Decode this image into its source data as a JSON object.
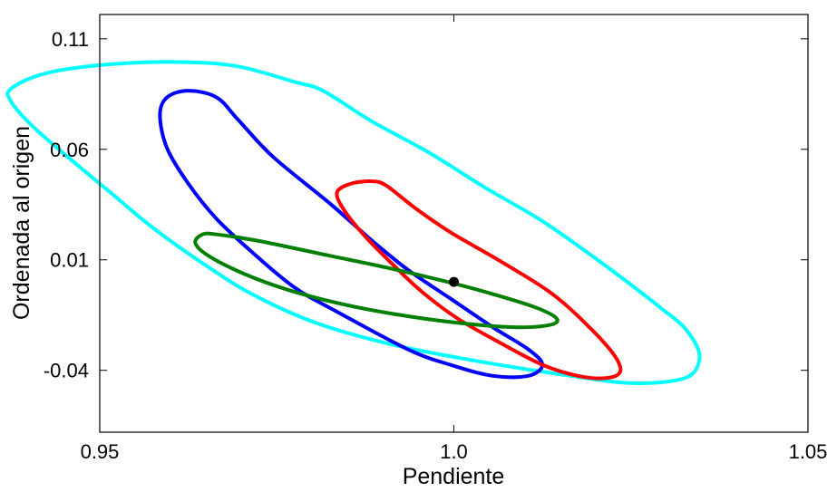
{
  "chart_data": {
    "type": "scatter",
    "title": "",
    "xlabel": "Pendiente",
    "ylabel": "Ordenada al origen",
    "xlim": [
      0.95,
      1.05
    ],
    "ylim": [
      -0.068,
      0.121
    ],
    "xticks": [
      0.95,
      1.0,
      1.05
    ],
    "xtick_labels": [
      "0.95",
      "1.0",
      "1.05"
    ],
    "yticks": [
      -0.04,
      0.01,
      0.06,
      0.11
    ],
    "ytick_labels": [
      "-0.04",
      "0.01",
      "0.06",
      "0.11"
    ],
    "grid": false,
    "legend": null,
    "series": [
      {
        "shape": "ellipse",
        "color": "#00ffff",
        "center": [
          1.0015,
          0.0265
        ],
        "points": [
          [
            0.9775,
            0.0905
          ],
          [
            0.9815,
            0.0865
          ],
          [
            0.9885,
            0.0725
          ],
          [
            0.9965,
            0.0585
          ],
          [
            1.0045,
            0.0425
          ],
          [
            1.0125,
            0.0275
          ],
          [
            1.0205,
            0.0095
          ],
          [
            1.0255,
            -0.0025
          ],
          [
            1.0295,
            -0.0125
          ],
          [
            1.0325,
            -0.0205
          ],
          [
            1.0345,
            -0.0305
          ],
          [
            1.0345,
            -0.0375
          ],
          [
            1.033,
            -0.043
          ],
          [
            1.029,
            -0.0455
          ],
          [
            1.0235,
            -0.0455
          ],
          [
            1.0165,
            -0.0425
          ],
          [
            1.0045,
            -0.0365
          ],
          [
            0.9915,
            -0.0285
          ],
          [
            0.9805,
            -0.0185
          ],
          [
            0.9715,
            -0.0055
          ],
          [
            0.9645,
            0.0085
          ],
          [
            0.9575,
            0.0245
          ],
          [
            0.9515,
            0.0405
          ],
          [
            0.9455,
            0.0565
          ],
          [
            0.9405,
            0.0705
          ],
          [
            0.9375,
            0.0815
          ],
          [
            0.9375,
            0.0875
          ],
          [
            0.9425,
            0.0945
          ],
          [
            0.9515,
            0.0985
          ],
          [
            0.9615,
            0.0995
          ],
          [
            0.9695,
            0.0975
          ]
        ]
      },
      {
        "shape": "ellipse",
        "color": "#0000ff",
        "center": [
          0.9955,
          0.0235
        ],
        "points": [
          [
            0.9695,
            0.0735
          ],
          [
            0.9745,
            0.0565
          ],
          [
            0.9825,
            0.0355
          ],
          [
            0.9885,
            0.0185
          ],
          [
            0.9935,
            0.0055
          ],
          [
            0.9995,
            -0.0075
          ],
          [
            1.0055,
            -0.0205
          ],
          [
            1.0105,
            -0.0305
          ],
          [
            1.0125,
            -0.0375
          ],
          [
            1.0105,
            -0.0425
          ],
          [
            1.0055,
            -0.0425
          ],
          [
            0.9995,
            -0.0375
          ],
          [
            0.9935,
            -0.0305
          ],
          [
            0.9835,
            -0.0135
          ],
          [
            0.9775,
            -0.0025
          ],
          [
            0.9715,
            0.0135
          ],
          [
            0.9665,
            0.0285
          ],
          [
            0.9625,
            0.0445
          ],
          [
            0.9595,
            0.0605
          ],
          [
            0.9585,
            0.0755
          ],
          [
            0.9595,
            0.0835
          ],
          [
            0.9625,
            0.0865
          ],
          [
            0.9665,
            0.0835
          ]
        ]
      },
      {
        "shape": "ellipse",
        "color": "#ff0000",
        "center": [
          1.0065,
          0.0025
        ],
        "points": [
          [
            0.9905,
            0.0435
          ],
          [
            0.9945,
            0.0335
          ],
          [
            0.9995,
            0.0225
          ],
          [
            1.0065,
            0.0095
          ],
          [
            1.0135,
            -0.0045
          ],
          [
            1.0185,
            -0.0185
          ],
          [
            1.0225,
            -0.0325
          ],
          [
            1.0235,
            -0.0405
          ],
          [
            1.0215,
            -0.0435
          ],
          [
            1.0175,
            -0.0425
          ],
          [
            1.0125,
            -0.0375
          ],
          [
            1.0065,
            -0.0275
          ],
          [
            1.0005,
            -0.0165
          ],
          [
            0.9955,
            -0.0045
          ],
          [
            0.9915,
            0.0075
          ],
          [
            0.9875,
            0.0205
          ],
          [
            0.9845,
            0.0325
          ],
          [
            0.9835,
            0.0405
          ],
          [
            0.9855,
            0.0445
          ],
          [
            0.9885,
            0.0455
          ]
        ]
      },
      {
        "shape": "ellipse",
        "color": "#007f00",
        "center": [
          0.9935,
          0.0055
        ],
        "points": [
          [
            0.9665,
            0.0215
          ],
          [
            0.9725,
            0.0185
          ],
          [
            0.9815,
            0.0125
          ],
          [
            0.9905,
            0.0065
          ],
          [
            0.9985,
            0.0005
          ],
          [
            1.0055,
            -0.0055
          ],
          [
            1.0115,
            -0.0115
          ],
          [
            1.0145,
            -0.0165
          ],
          [
            1.0135,
            -0.0195
          ],
          [
            1.0085,
            -0.0205
          ],
          [
            1.0005,
            -0.0185
          ],
          [
            0.9915,
            -0.0145
          ],
          [
            0.9835,
            -0.0095
          ],
          [
            0.9765,
            -0.0035
          ],
          [
            0.9705,
            0.0035
          ],
          [
            0.9655,
            0.0115
          ],
          [
            0.9635,
            0.0175
          ],
          [
            0.9645,
            0.0215
          ]
        ]
      }
    ],
    "marker": {
      "color": "#000000",
      "point": [
        1.0,
        0.0
      ]
    }
  }
}
